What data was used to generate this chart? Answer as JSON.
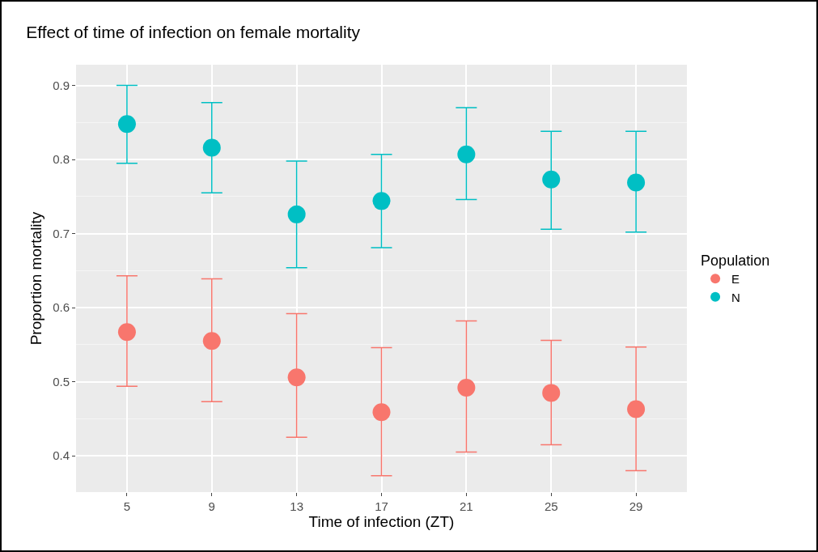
{
  "chart_data": {
    "type": "scatter",
    "title": "Effect of time of infection on female mortality",
    "xlabel": "Time of infection (ZT)",
    "ylabel": "Proportion mortality",
    "legend_title": "Population",
    "categories": [
      "5",
      "9",
      "13",
      "17",
      "21",
      "25",
      "29"
    ],
    "series": [
      {
        "name": "E",
        "color": "#f8766d",
        "values": [
          0.567,
          0.555,
          0.506,
          0.459,
          0.492,
          0.485,
          0.463
        ],
        "errors": [
          [
            0.494,
            0.643
          ],
          [
            0.473,
            0.639
          ],
          [
            0.425,
            0.592
          ],
          [
            0.373,
            0.546
          ],
          [
            0.405,
            0.582
          ],
          [
            0.415,
            0.556
          ],
          [
            0.38,
            0.547
          ]
        ]
      },
      {
        "name": "N",
        "color": "#00bfc4",
        "values": [
          0.848,
          0.816,
          0.726,
          0.744,
          0.807,
          0.773,
          0.769
        ],
        "errors": [
          [
            0.795,
            0.9
          ],
          [
            0.755,
            0.877
          ],
          [
            0.654,
            0.798
          ],
          [
            0.681,
            0.807
          ],
          [
            0.746,
            0.87
          ],
          [
            0.706,
            0.838
          ],
          [
            0.702,
            0.838
          ]
        ]
      }
    ],
    "ylim": [
      0.351,
      0.928
    ],
    "yticks": [
      0.4,
      0.5,
      0.6,
      0.7,
      0.8,
      0.9
    ],
    "grid": true,
    "legend": "right",
    "marker": "circle"
  }
}
